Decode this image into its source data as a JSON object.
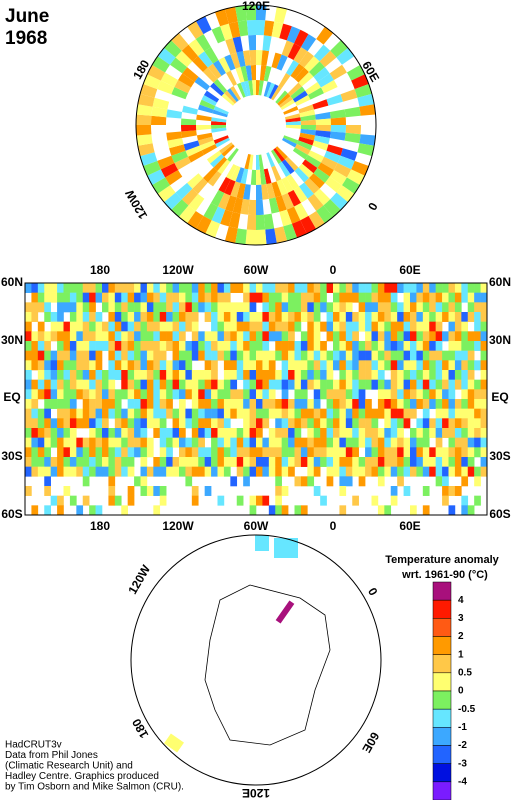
{
  "header": {
    "title": [
      "June",
      "1968"
    ]
  },
  "north_polar": {
    "labels": [
      "120E",
      "60E",
      "0",
      "120W",
      "180"
    ]
  },
  "main_map": {
    "top_labels": [
      "180",
      "120W",
      "60W",
      "0",
      "60E"
    ],
    "bottom_labels": [
      "180",
      "120W",
      "60W",
      "0",
      "60E"
    ],
    "left_labels": [
      "60N",
      "30N",
      "EQ",
      "30S",
      "60S"
    ],
    "right_labels": [
      "60N",
      "30N",
      "EQ",
      "30S",
      "60S"
    ]
  },
  "south_polar": {
    "labels": [
      "60W",
      "120W",
      "0",
      "60E",
      "120E",
      "180"
    ]
  },
  "legend": {
    "title": [
      "Temperature anomaly",
      "wrt. 1961-90  (°C)"
    ],
    "ticks": [
      4,
      3,
      2,
      1,
      0.5,
      0,
      -0.5,
      -1,
      -2,
      -3,
      -4
    ],
    "colors": [
      "#a8107c",
      "#ff1a00",
      "#ff5a14",
      "#ff9a00",
      "#ffc848",
      "#ffff70",
      "#7cf060",
      "#66e6ff",
      "#3ca8ff",
      "#2264ff",
      "#0010e0",
      "#7a1cff"
    ]
  },
  "credits": [
    "HadCRUT3v",
    "Data from Phil Jones",
    "(Climatic Research Unit) and",
    "Hadley Centre.  Graphics produced",
    "by Tim Osborn and Mike Salmon (CRU)."
  ]
}
